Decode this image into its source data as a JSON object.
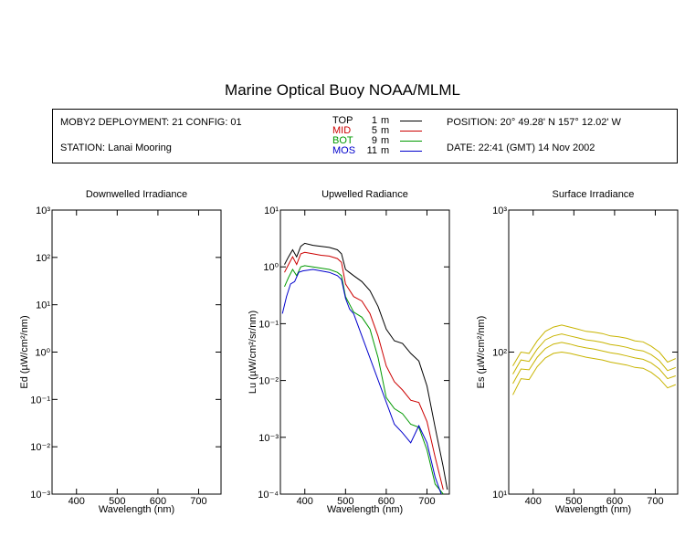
{
  "title": "Marine Optical Buoy NOAA/MLML",
  "info": {
    "deployment": "MOBY2 DEPLOYMENT: 21 CONFIG: 01",
    "station": "STATION: Lanai Mooring",
    "position": "POSITION: 20° 49.28' N   157° 12.02' W",
    "date": "DATE: 22:41 (GMT) 14 Nov 2002"
  },
  "legend": [
    {
      "label": "TOP",
      "depth": "1",
      "unit": "m",
      "color": "#000000"
    },
    {
      "label": "MID",
      "depth": "5",
      "unit": "m",
      "color": "#cc0000"
    },
    {
      "label": "BOT",
      "depth": "9",
      "unit": "m",
      "color": "#009900"
    },
    {
      "label": "MOS",
      "depth": "11",
      "unit": "m",
      "color": "#0000cc"
    }
  ],
  "chart_data": [
    {
      "type": "line",
      "title": "Downwelled Irradiance",
      "xlabel": "Wavelength (nm)",
      "ylabel": "Ed  (µW/cm²/nm)",
      "yscale": "log",
      "xlim": [
        340,
        755
      ],
      "ylim": [
        0.001,
        1000
      ],
      "xticks": [
        400,
        500,
        600,
        700
      ],
      "ytick_exponents": [
        -3,
        -2,
        -1,
        0,
        1,
        2,
        3
      ],
      "series": []
    },
    {
      "type": "line",
      "title": "Upwelled Radiance",
      "xlabel": "Wavelength (nm)",
      "ylabel": "Lu  (µW/cm²/sr/nm)",
      "yscale": "log",
      "xlim": [
        340,
        755
      ],
      "ylim": [
        0.0001,
        10
      ],
      "xticks": [
        400,
        500,
        600,
        700
      ],
      "ytick_exponents": [
        -4,
        -3,
        -2,
        -1,
        0,
        1
      ],
      "series": [
        {
          "name": "TOP",
          "color": "#000000",
          "x": [
            350,
            360,
            370,
            380,
            390,
            400,
            420,
            440,
            460,
            480,
            490,
            500,
            520,
            540,
            560,
            580,
            600,
            620,
            640,
            660,
            680,
            700,
            720,
            740,
            750
          ],
          "y": [
            1.1,
            1.5,
            2.0,
            1.5,
            2.3,
            2.6,
            2.4,
            2.3,
            2.2,
            2.0,
            1.7,
            0.9,
            0.7,
            0.55,
            0.38,
            0.2,
            0.08,
            0.05,
            0.045,
            0.03,
            0.022,
            0.008,
            0.0015,
            0.0003,
            0.00012
          ]
        },
        {
          "name": "MID",
          "color": "#cc0000",
          "x": [
            350,
            360,
            370,
            380,
            390,
            400,
            420,
            440,
            460,
            480,
            490,
            500,
            520,
            540,
            560,
            580,
            600,
            620,
            640,
            660,
            680,
            700,
            720,
            740
          ],
          "y": [
            0.8,
            1.1,
            1.5,
            1.1,
            1.7,
            1.8,
            1.7,
            1.6,
            1.55,
            1.4,
            1.2,
            0.5,
            0.3,
            0.25,
            0.15,
            0.06,
            0.018,
            0.0095,
            0.0068,
            0.0045,
            0.0041,
            0.0019,
            0.00045,
            0.00012
          ]
        },
        {
          "name": "BOT",
          "color": "#009900",
          "x": [
            350,
            360,
            370,
            380,
            390,
            400,
            420,
            440,
            460,
            480,
            490,
            500,
            520,
            540,
            560,
            580,
            600,
            620,
            640,
            660,
            680,
            700,
            720,
            740
          ],
          "y": [
            0.45,
            0.65,
            0.9,
            0.7,
            1.0,
            1.05,
            1.0,
            0.95,
            0.9,
            0.8,
            0.7,
            0.3,
            0.16,
            0.13,
            0.08,
            0.025,
            0.005,
            0.0032,
            0.0026,
            0.0017,
            0.0015,
            0.0006,
            0.00015,
            0.0001
          ]
        },
        {
          "name": "MOS",
          "color": "#0000cc",
          "x": [
            345,
            355,
            365,
            375,
            385,
            395,
            420,
            440,
            460,
            480,
            490,
            500,
            510,
            520,
            620,
            640,
            660,
            680,
            700,
            720,
            735
          ],
          "y": [
            0.15,
            0.3,
            0.5,
            0.55,
            0.8,
            0.85,
            0.9,
            0.85,
            0.8,
            0.7,
            0.6,
            0.28,
            0.18,
            0.15,
            0.0017,
            0.0012,
            0.0008,
            0.0016,
            0.0008,
            0.0002,
            0.0001
          ]
        }
      ]
    },
    {
      "type": "line",
      "title": "Surface Irradiance",
      "xlabel": "Wavelength (nm)",
      "ylabel": "Es  (µW/cm²/nm)",
      "yscale": "log",
      "xlim": [
        340,
        755
      ],
      "ylim": [
        10,
        1000
      ],
      "xticks": [
        400,
        500,
        600,
        700
      ],
      "ytick_exponents": [
        1,
        2,
        3
      ],
      "series": [
        {
          "name": "Es",
          "color": "#c8b400",
          "x": [
            350,
            370,
            390,
            410,
            430,
            450,
            470,
            490,
            510,
            530,
            550,
            570,
            590,
            610,
            630,
            650,
            670,
            690,
            710,
            730,
            750
          ],
          "y": [
            80,
            100,
            98,
            120,
            140,
            150,
            155,
            150,
            145,
            140,
            138,
            135,
            130,
            128,
            125,
            120,
            118,
            110,
            100,
            85,
            90
          ]
        },
        {
          "name": "Es",
          "color": "#c8b400",
          "x": [
            350,
            370,
            390,
            410,
            430,
            450,
            470,
            490,
            510,
            530,
            550,
            570,
            590,
            610,
            630,
            650,
            670,
            690,
            710,
            730,
            750
          ],
          "y": [
            70,
            88,
            86,
            105,
            122,
            130,
            134,
            130,
            126,
            122,
            120,
            117,
            113,
            111,
            108,
            104,
            102,
            96,
            87,
            74,
            78
          ]
        },
        {
          "name": "Es",
          "color": "#c8b400",
          "x": [
            350,
            370,
            390,
            410,
            430,
            450,
            470,
            490,
            510,
            530,
            550,
            570,
            590,
            610,
            630,
            650,
            670,
            690,
            710,
            730,
            750
          ],
          "y": [
            60,
            76,
            75,
            92,
            106,
            114,
            117,
            114,
            110,
            107,
            105,
            102,
            99,
            97,
            94,
            91,
            89,
            84,
            76,
            65,
            68
          ]
        },
        {
          "name": "Es",
          "color": "#c8b400",
          "x": [
            350,
            370,
            390,
            410,
            430,
            450,
            470,
            490,
            510,
            530,
            550,
            570,
            590,
            610,
            630,
            650,
            670,
            690,
            710,
            730,
            750
          ],
          "y": [
            50,
            65,
            64,
            79,
            91,
            98,
            100,
            98,
            95,
            92,
            90,
            88,
            85,
            83,
            81,
            78,
            77,
            72,
            65,
            56,
            59
          ]
        }
      ]
    }
  ]
}
